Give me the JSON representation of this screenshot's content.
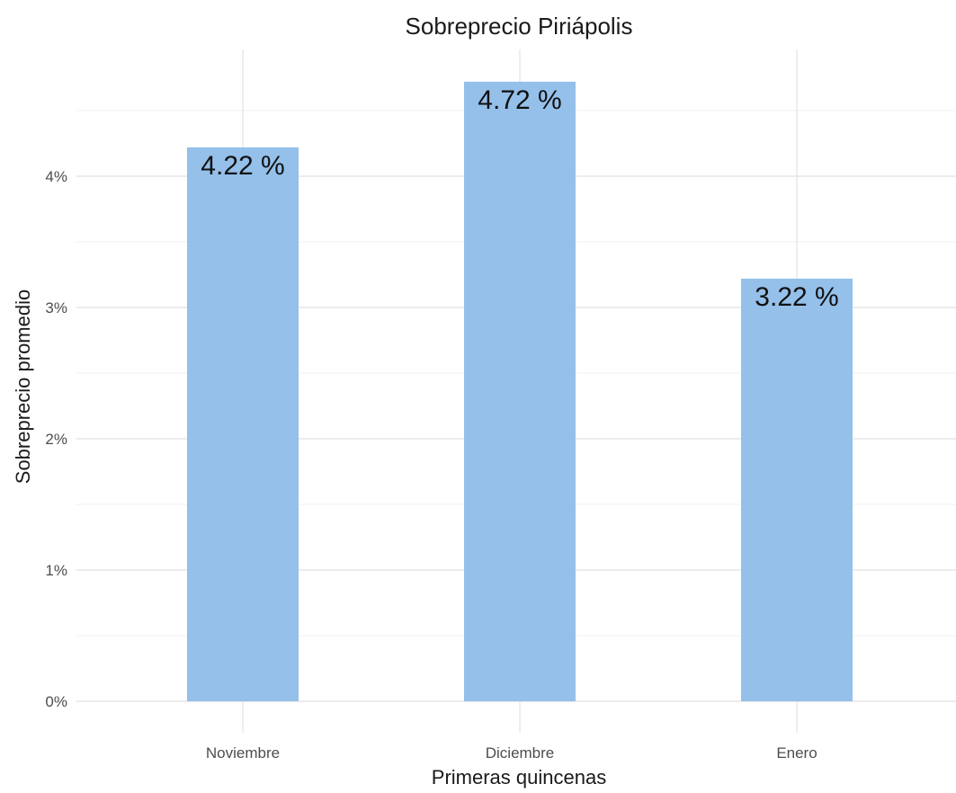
{
  "chart_data": {
    "type": "bar",
    "title": "Sobreprecio Piriápolis",
    "xlabel": "Primeras quincenas",
    "ylabel": "Sobreprecio promedio",
    "categories": [
      "Noviembre",
      "Diciembre",
      "Enero"
    ],
    "values": [
      4.22,
      4.72,
      3.22
    ],
    "data_labels": [
      "4.22 %",
      "4.72 %",
      "3.22 %"
    ],
    "ylim": [
      0,
      5
    ],
    "y_ticks": [
      0,
      1,
      2,
      3,
      4
    ],
    "y_tick_labels": [
      "0%",
      "1%",
      "2%",
      "3%",
      "4%"
    ],
    "grid": true,
    "legend": "none",
    "bar_color": "#94c0ea"
  }
}
